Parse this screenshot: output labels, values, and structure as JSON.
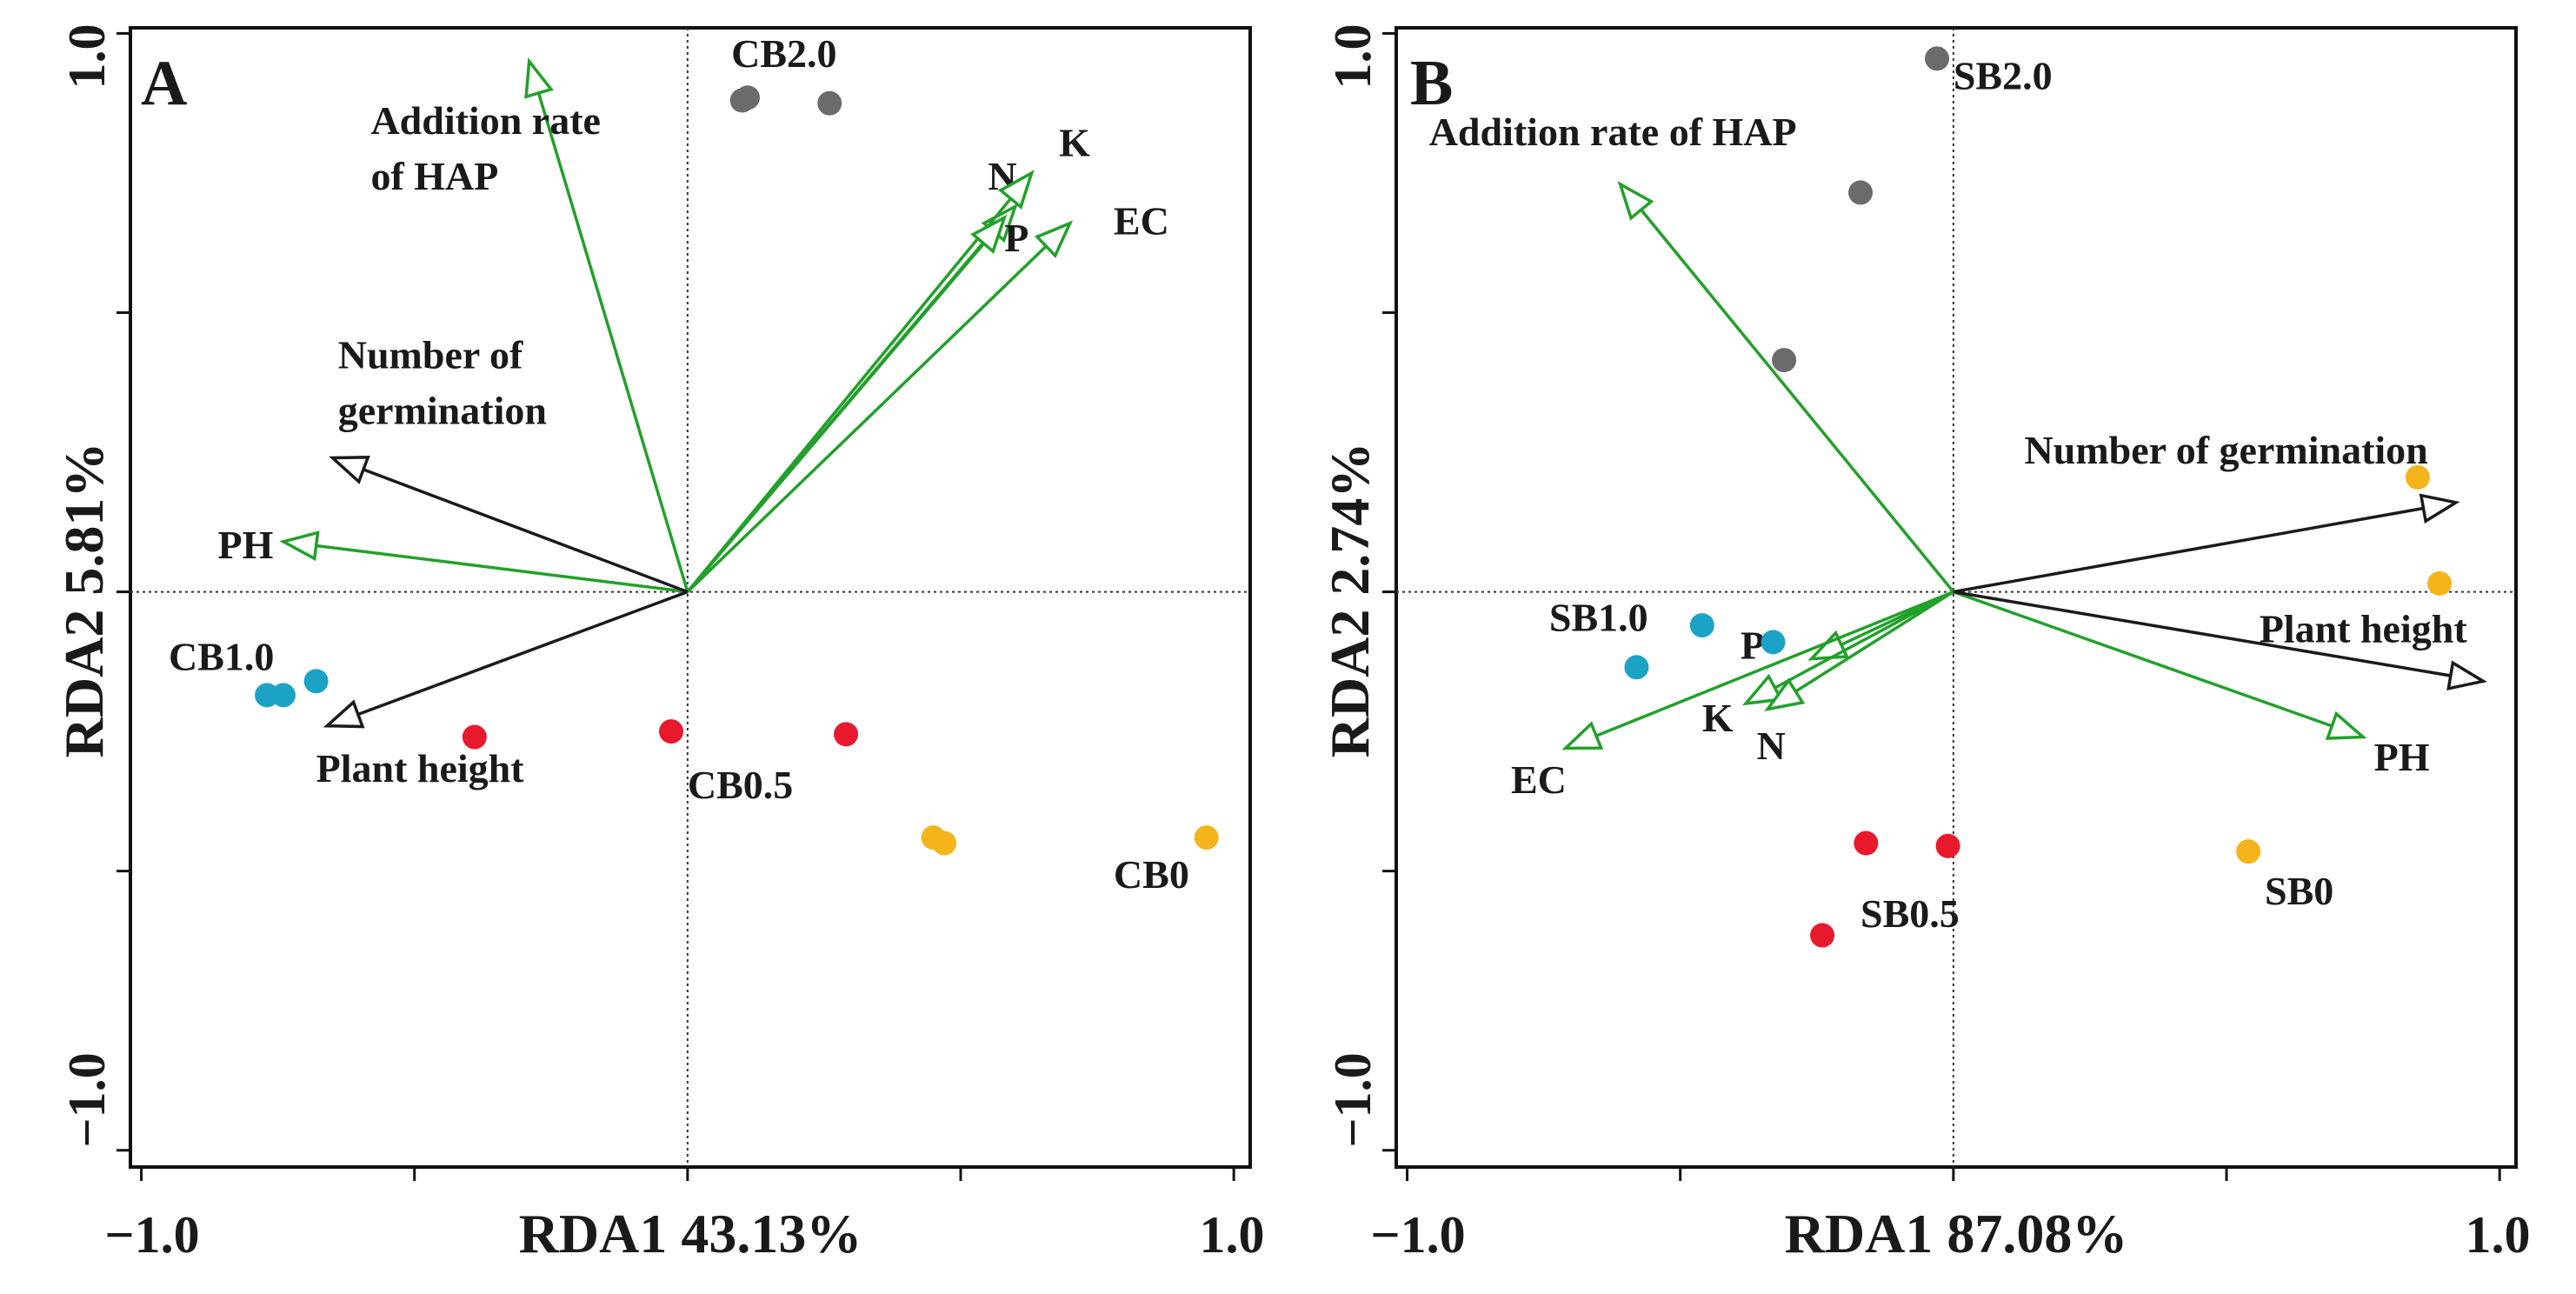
{
  "figure": {
    "panels": [
      {
        "id": "A",
        "letter": "A",
        "xlabel": "RDA1 43.13%",
        "ylabel": "RDA2 5.81%",
        "xticks": [
          "−1.0",
          "1.0"
        ],
        "yticks": [
          "1.0",
          "−1.0"
        ]
      },
      {
        "id": "B",
        "letter": "B",
        "xlabel": "RDA1 87.08%",
        "ylabel": "RDA2 2.74%",
        "xticks": [
          "−1.0",
          "1.0"
        ],
        "yticks": [
          "1.0",
          "−1.0"
        ]
      }
    ]
  },
  "chart_data": [
    {
      "type": "scatter",
      "panel": "A",
      "title": "A",
      "xlabel": "RDA1 43.13%",
      "ylabel": "RDA2 5.81%",
      "xlim": [
        -1.02,
        1.03
      ],
      "ylim": [
        -1.03,
        1.01
      ],
      "xticks_major": [
        -1.0,
        1.0
      ],
      "xticks_minor": [
        -1.0,
        -0.5,
        0,
        0.5,
        1.0
      ],
      "yticks_major": [
        1.0,
        -1.0
      ],
      "yticks_minor": [
        1.0,
        0.5,
        0,
        -0.5,
        -1.0
      ],
      "reference_lines": {
        "x": 0,
        "y": 0,
        "style": "dotted"
      },
      "colors": {
        "CB0": "#f5b41c",
        "CB0.5": "#e8192c",
        "CB1.0": "#1ba3c6",
        "CB2.0": "#6b6b6b",
        "env_arrow": "#22a02a",
        "response_arrow": "#1a1a1a"
      },
      "series": [
        {
          "name": "CB2.0",
          "color": "#6b6b6b",
          "points": [
            [
              0.1,
              0.88
            ],
            [
              0.11,
              0.885
            ],
            [
              0.26,
              0.875
            ]
          ],
          "label": "CB2.0",
          "label_at": [
            0.08,
            0.94
          ]
        },
        {
          "name": "CB1.0",
          "color": "#1ba3c6",
          "points": [
            [
              -0.77,
              -0.185
            ],
            [
              -0.74,
              -0.185
            ],
            [
              -0.68,
              -0.16
            ]
          ],
          "label": "CB1.0",
          "label_at": [
            -0.95,
            -0.14
          ]
        },
        {
          "name": "CB0.5",
          "color": "#e8192c",
          "points": [
            [
              -0.39,
              -0.26
            ],
            [
              -0.03,
              -0.25
            ],
            [
              0.29,
              -0.255
            ]
          ],
          "label": "CB0.5",
          "label_at": [
            0.0,
            -0.37
          ]
        },
        {
          "name": "CB0",
          "color": "#f5b41c",
          "points": [
            [
              0.45,
              -0.44
            ],
            [
              0.47,
              -0.45
            ],
            [
              0.95,
              -0.44
            ]
          ],
          "label": "CB0",
          "label_at": [
            0.78,
            -0.53
          ]
        }
      ],
      "arrows": [
        {
          "name": "Addition rate of HAP",
          "kind": "environment",
          "x": -0.29,
          "y": 0.95,
          "label": [
            "Addition rate",
            "of HAP"
          ],
          "label_at": [
            -0.58,
            0.82
          ]
        },
        {
          "name": "N",
          "kind": "environment",
          "x": 0.6,
          "y": 0.69,
          "label": [
            "N"
          ],
          "label_at": [
            0.55,
            0.72
          ]
        },
        {
          "name": "K",
          "kind": "environment",
          "x": 0.63,
          "y": 0.75,
          "label": [
            "K"
          ],
          "label_at": [
            0.68,
            0.78
          ]
        },
        {
          "name": "P",
          "kind": "environment",
          "x": 0.58,
          "y": 0.67,
          "label": [
            "P"
          ],
          "label_at": [
            0.58,
            0.61
          ]
        },
        {
          "name": "EC",
          "kind": "environment",
          "x": 0.7,
          "y": 0.66,
          "label": [
            "EC"
          ],
          "label_at": [
            0.78,
            0.64
          ]
        },
        {
          "name": "PH",
          "kind": "environment",
          "x": -0.74,
          "y": 0.09,
          "label": [
            "PH"
          ],
          "label_at": [
            -0.86,
            0.06
          ]
        },
        {
          "name": "Number of germination",
          "kind": "response",
          "x": -0.65,
          "y": 0.24,
          "label": [
            "Number of",
            "germination"
          ],
          "label_at": [
            -0.64,
            0.4
          ]
        },
        {
          "name": "Plant height",
          "kind": "response",
          "x": -0.66,
          "y": -0.24,
          "label": [
            "Plant height"
          ],
          "label_at": [
            -0.68,
            -0.34
          ]
        }
      ]
    },
    {
      "type": "scatter",
      "panel": "B",
      "title": "B",
      "xlabel": "RDA1 87.08%",
      "ylabel": "RDA2 2.74%",
      "xlim": [
        -1.02,
        1.03
      ],
      "ylim": [
        -1.03,
        1.01
      ],
      "xticks_major": [
        -1.0,
        1.0
      ],
      "xticks_minor": [
        -1.0,
        -0.5,
        0,
        0.5,
        1.0
      ],
      "yticks_major": [
        1.0,
        -1.0
      ],
      "yticks_minor": [
        1.0,
        0.5,
        0,
        -0.5,
        -1.0
      ],
      "reference_lines": {
        "x": 0,
        "y": 0,
        "style": "dotted"
      },
      "colors": {
        "SB0": "#f5b41c",
        "SB0.5": "#e8192c",
        "SB1.0": "#1ba3c6",
        "SB2.0": "#6b6b6b",
        "env_arrow": "#22a02a",
        "response_arrow": "#1a1a1a"
      },
      "series": [
        {
          "name": "SB2.0",
          "color": "#6b6b6b",
          "points": [
            [
              -0.03,
              0.955
            ],
            [
              -0.17,
              0.715
            ],
            [
              -0.31,
              0.415
            ]
          ],
          "label": "SB2.0",
          "label_at": [
            0.0,
            0.9
          ]
        },
        {
          "name": "SB1.0",
          "color": "#1ba3c6",
          "points": [
            [
              -0.58,
              -0.135
            ],
            [
              -0.46,
              -0.06
            ],
            [
              -0.33,
              -0.09
            ]
          ],
          "label": "SB1.0",
          "label_at": [
            -0.74,
            -0.07
          ]
        },
        {
          "name": "SB0.5",
          "color": "#e8192c",
          "points": [
            [
              -0.16,
              -0.45
            ],
            [
              -0.01,
              -0.455
            ],
            [
              -0.24,
              -0.615
            ]
          ],
          "label": "SB0.5",
          "label_at": [
            -0.17,
            -0.6
          ]
        },
        {
          "name": "SB0",
          "color": "#f5b41c",
          "points": [
            [
              0.85,
              0.205
            ],
            [
              0.89,
              0.015
            ],
            [
              0.54,
              -0.465
            ]
          ],
          "label": "SB0",
          "label_at": [
            0.57,
            -0.56
          ]
        }
      ],
      "arrows": [
        {
          "name": "Addition rate of HAP",
          "kind": "environment",
          "x": -0.61,
          "y": 0.73,
          "label": [
            "Addition rate of HAP"
          ],
          "label_at": [
            -0.96,
            0.8
          ]
        },
        {
          "name": "P",
          "kind": "environment",
          "x": -0.26,
          "y": -0.12,
          "label": [
            "P"
          ],
          "label_at": [
            -0.39,
            -0.12
          ]
        },
        {
          "name": "K",
          "kind": "environment",
          "x": -0.38,
          "y": -0.2,
          "label": [
            "K"
          ],
          "label_at": [
            -0.46,
            -0.25
          ]
        },
        {
          "name": "N",
          "kind": "environment",
          "x": -0.34,
          "y": -0.21,
          "label": [
            "N"
          ],
          "label_at": [
            -0.36,
            -0.3
          ]
        },
        {
          "name": "EC",
          "kind": "environment",
          "x": -0.71,
          "y": -0.28,
          "label": [
            "EC"
          ],
          "label_at": [
            -0.81,
            -0.36
          ]
        },
        {
          "name": "PH",
          "kind": "environment",
          "x": 0.75,
          "y": -0.26,
          "label": [
            "PH"
          ],
          "label_at": [
            0.77,
            -0.32
          ]
        },
        {
          "name": "Number of germination",
          "kind": "response",
          "x": 0.92,
          "y": 0.16,
          "label": [
            "Number of germination"
          ],
          "label_at": [
            0.13,
            0.23
          ]
        },
        {
          "name": "Plant height",
          "kind": "response",
          "x": 0.97,
          "y": -0.16,
          "label": [
            "Plant height"
          ],
          "label_at": [
            0.56,
            -0.09
          ]
        }
      ]
    }
  ]
}
